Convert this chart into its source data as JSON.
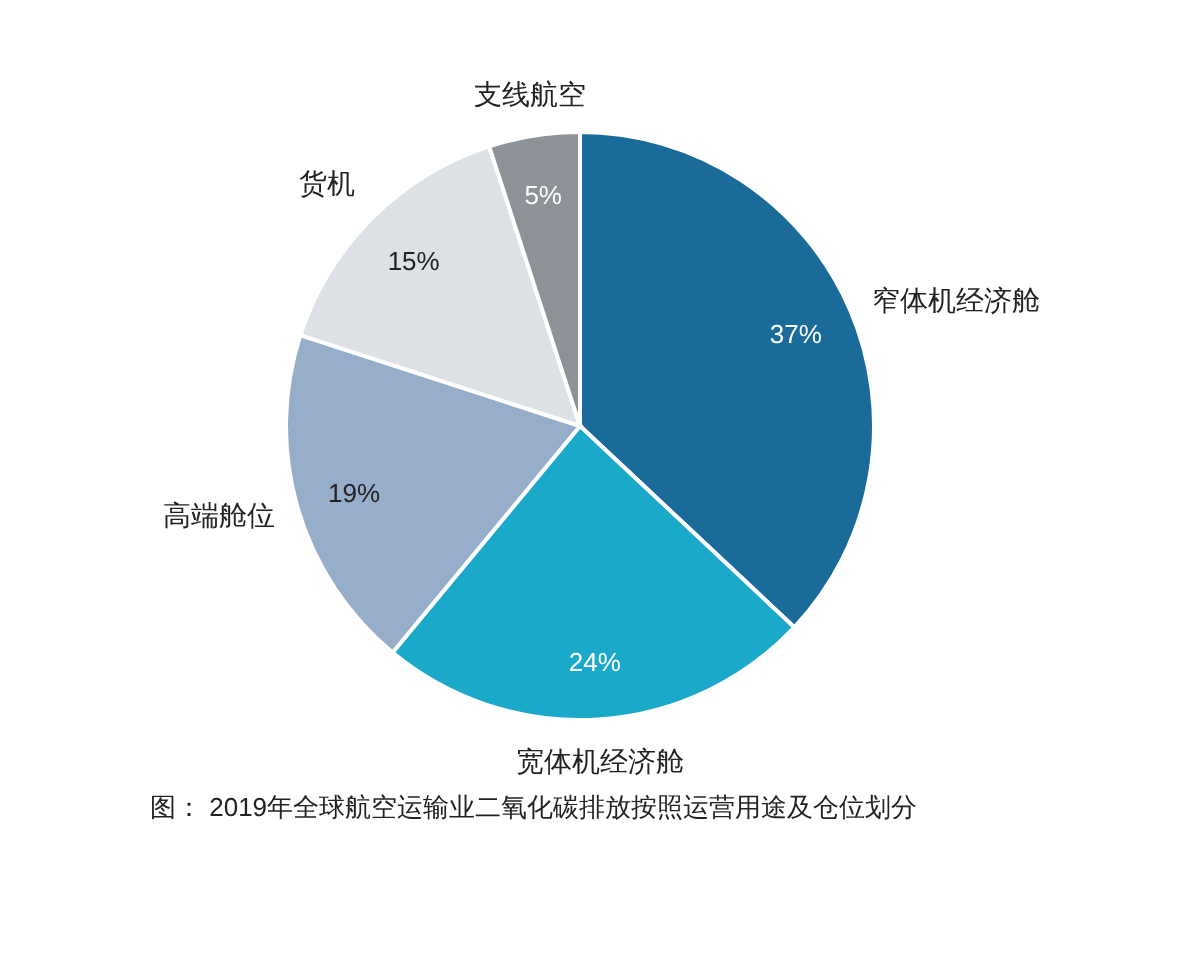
{
  "chart_data": {
    "type": "pie",
    "categories": [
      "窄体机经济舱",
      "宽体机经济舱",
      "高端舱位",
      "货机",
      "支线航空"
    ],
    "values": [
      37,
      24,
      19,
      15,
      5
    ],
    "value_labels": [
      "37%",
      "24%",
      "19%",
      "15%",
      "5%"
    ],
    "colors": [
      "#1a6a9a",
      "#1ba9c9",
      "#97aecb",
      "#dde1e6",
      "#8c9298"
    ],
    "annotations": [
      "图： 2019年全球航空运输业二氧化碳排放按照运营用途及仓位划分"
    ]
  }
}
